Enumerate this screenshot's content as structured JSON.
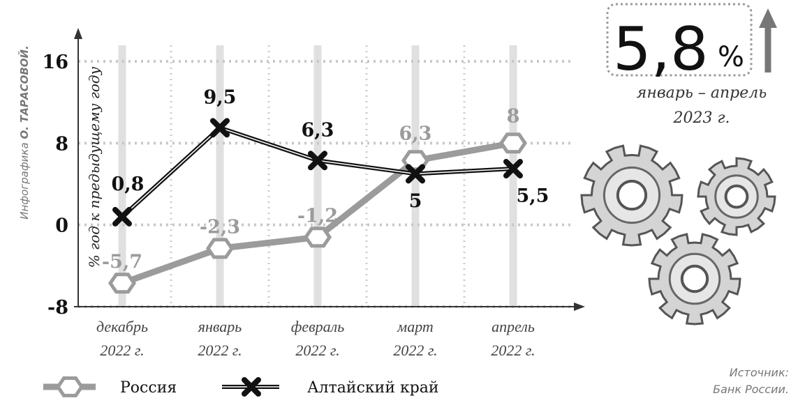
{
  "chart_data": {
    "type": "line",
    "y_label": "% год к предыдущему году",
    "categories": [
      "декабрь 2022 г.",
      "январь 2022 г.",
      "февраль 2022 г.",
      "март 2022 г.",
      "апрель 2022 г."
    ],
    "series": [
      {
        "name": "Россия",
        "color": "#9b9b9b",
        "values": [
          -5.7,
          -2.3,
          -1.2,
          6.3,
          8
        ],
        "value_labels": [
          "-5,7",
          "-2,3",
          "-1,2",
          "6,3",
          "8"
        ]
      },
      {
        "name": "Алтайский край",
        "color": "#111111",
        "values": [
          0.8,
          9.5,
          6.3,
          5,
          5.5
        ],
        "value_labels": [
          "0,8",
          "9,5",
          "6,3",
          "5",
          "5,5"
        ]
      }
    ],
    "ylim": [
      -8,
      16
    ],
    "yticks": [
      -8,
      0,
      8,
      16
    ],
    "grid": true
  },
  "headline": {
    "value": "5,8",
    "unit": "%",
    "period": "январь – апрель",
    "year": "2023 г."
  },
  "credit": {
    "prefix": "Инфографика",
    "name": "О. ТАРАСОВОЙ."
  },
  "source": {
    "label": "Источник:",
    "name": "Банк России."
  }
}
